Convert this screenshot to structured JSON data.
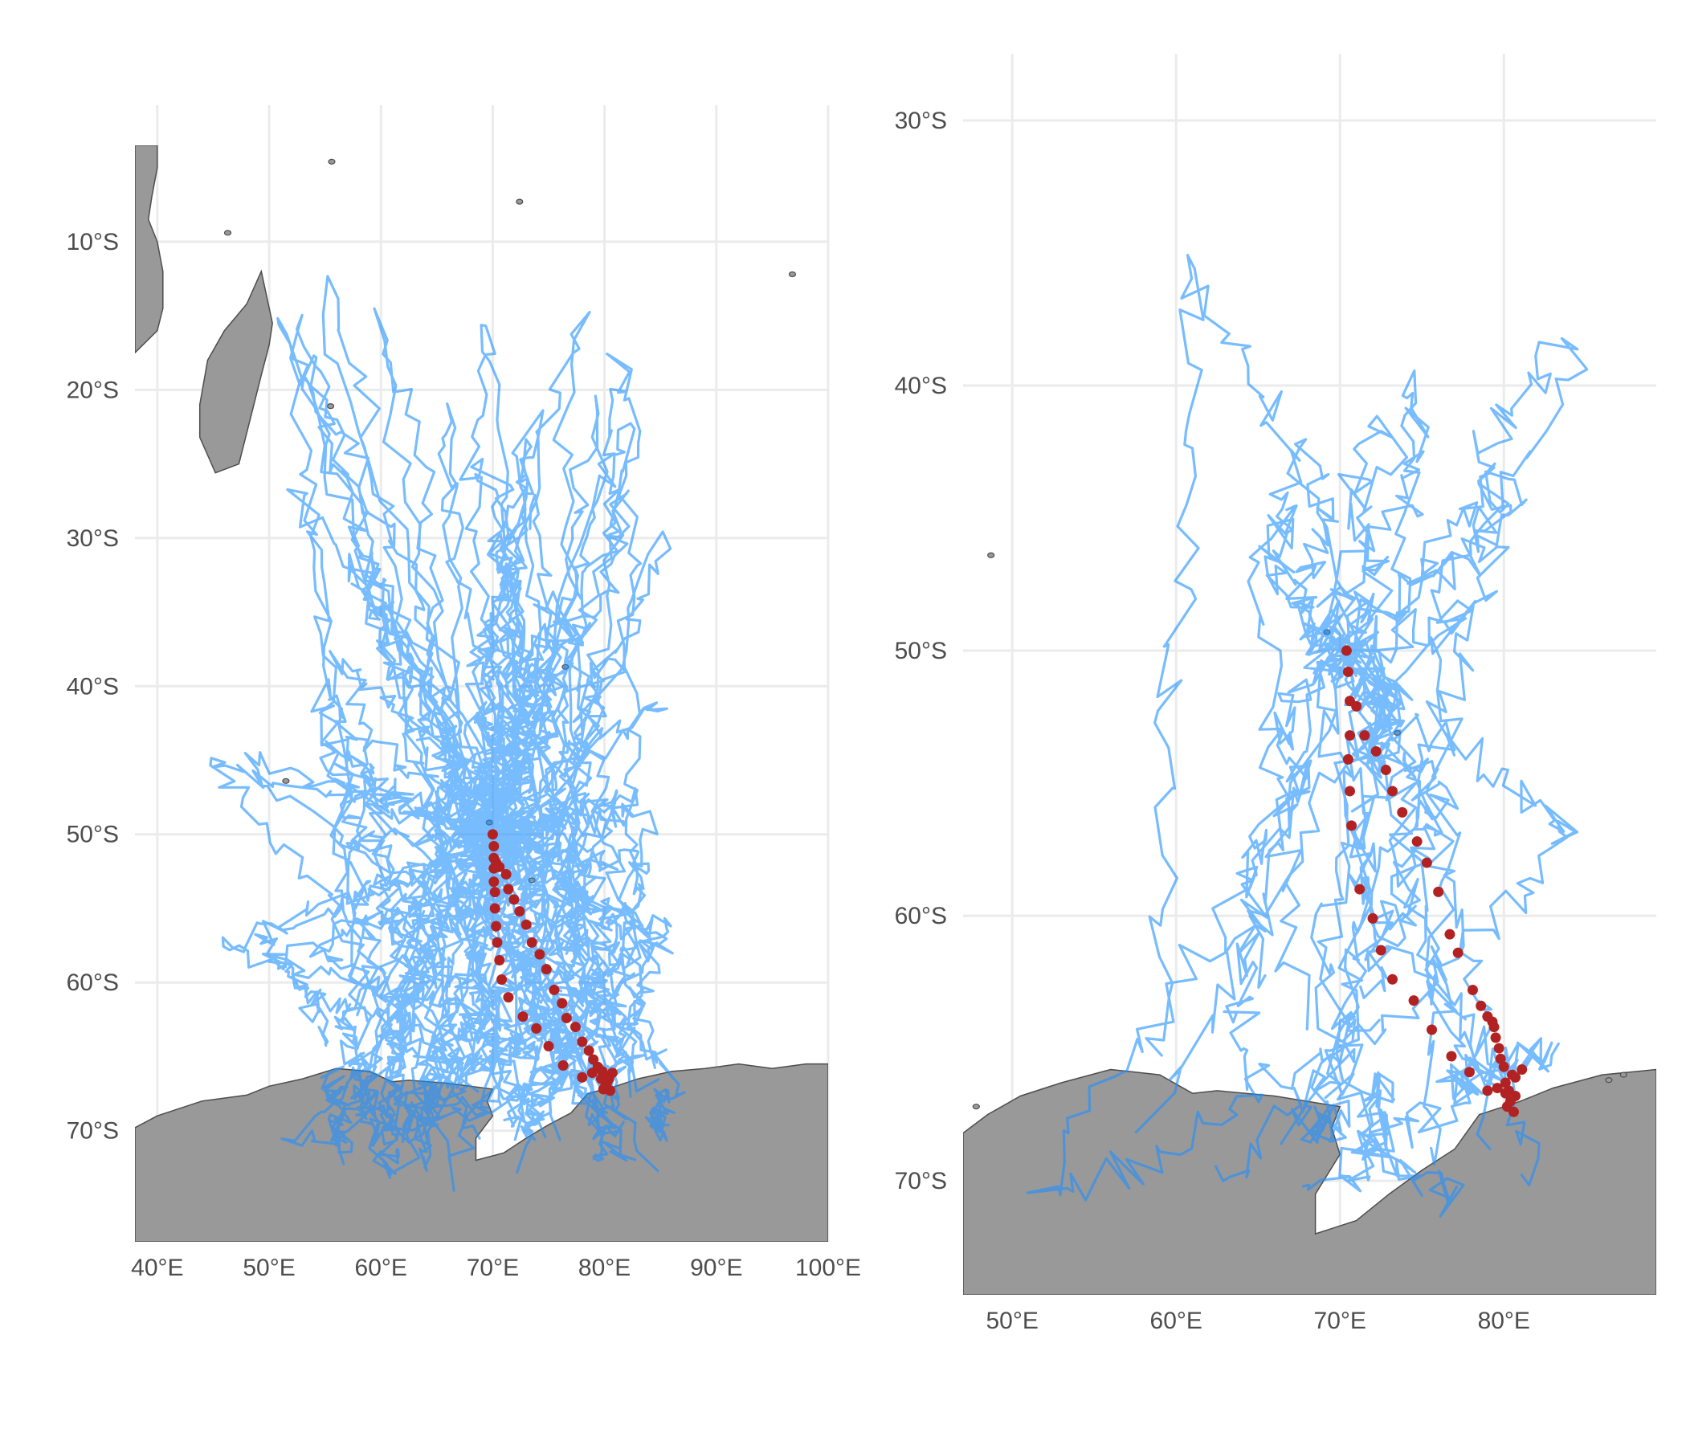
{
  "colors": {
    "tracks": "#1e90ff",
    "tracks_opacity": 0.6,
    "points": "#b22222",
    "land": "#999999",
    "grid": "#ebebeb"
  },
  "chart_data": [
    {
      "type": "map",
      "panel": "left",
      "grid": true,
      "xlim": [
        38,
        100
      ],
      "ylim": [
        -77.5,
        -3.5
      ],
      "x_ticks": [
        40,
        50,
        60,
        70,
        80,
        90,
        100
      ],
      "x_tick_labels": [
        "40°E",
        "50°E",
        "60°E",
        "70°E",
        "80°E",
        "90°E",
        "100°E"
      ],
      "y_ticks": [
        -10,
        -20,
        -30,
        -40,
        -50,
        -60,
        -70
      ],
      "y_tick_labels": [
        "10°S",
        "20°S",
        "30°S",
        "40°S",
        "50°S",
        "60°S",
        "70°S"
      ],
      "land": [
        {
          "name": "Africa",
          "coords": [
            [
              38,
              -3.5
            ],
            [
              40,
              -3.5
            ],
            [
              40,
              -5
            ],
            [
              39.5,
              -7
            ],
            [
              39.2,
              -8.5
            ],
            [
              40,
              -10
            ],
            [
              40.5,
              -12
            ],
            [
              40.5,
              -14.5
            ],
            [
              40,
              -16
            ],
            [
              38,
              -17.5
            ]
          ]
        },
        {
          "name": "Madagascar",
          "coords": [
            [
              49.3,
              -12
            ],
            [
              50.3,
              -15.5
            ],
            [
              50,
              -17
            ],
            [
              49.3,
              -19
            ],
            [
              48.3,
              -22
            ],
            [
              47.3,
              -25
            ],
            [
              45.2,
              -25.6
            ],
            [
              43.8,
              -23.2
            ],
            [
              43.8,
              -21
            ],
            [
              44.5,
              -18
            ],
            [
              46,
              -16
            ],
            [
              48,
              -14.2
            ]
          ]
        },
        {
          "name": "Antarctica",
          "coords": [
            [
              38,
              -69.8
            ],
            [
              40,
              -69
            ],
            [
              44,
              -68
            ],
            [
              48,
              -67.6
            ],
            [
              50,
              -67
            ],
            [
              53,
              -66.5
            ],
            [
              56,
              -65.8
            ],
            [
              59,
              -66
            ],
            [
              61,
              -66.7
            ],
            [
              62.5,
              -66.6
            ],
            [
              66,
              -66.8
            ],
            [
              70,
              -67.2
            ],
            [
              69.5,
              -68
            ],
            [
              70,
              -69
            ],
            [
              68.5,
              -70.5
            ],
            [
              68.5,
              -72
            ],
            [
              71,
              -71.5
            ],
            [
              73,
              -70.5
            ],
            [
              75,
              -69.6
            ],
            [
              77,
              -68.8
            ],
            [
              78.5,
              -67.5
            ],
            [
              81,
              -67
            ],
            [
              83,
              -66.5
            ],
            [
              86,
              -66
            ],
            [
              89,
              -65.8
            ],
            [
              92,
              -65.5
            ],
            [
              95,
              -65.8
            ],
            [
              98,
              -65.5
            ],
            [
              100,
              -65.5
            ],
            [
              100,
              -77.5
            ],
            [
              38,
              -77.5
            ]
          ]
        }
      ],
      "islands": [
        [
          -57,
          -20.3
        ],
        [
          [
            55.5,
            -21.1
          ]
        ],
        [
          [
            51.5,
            -46.4
          ]
        ],
        [
          [
            69.7,
            -49.2
          ]
        ],
        [
          [
            73.5,
            -53.1
          ]
        ],
        [
          [
            76.5,
            -38.7
          ]
        ],
        [
          [
            72.4,
            -7.3
          ]
        ],
        [
          [
            96.8,
            -12.2
          ]
        ],
        [
          [
            55.6,
            -4.6
          ]
        ],
        [
          [
            46.3,
            -9.4
          ]
        ]
      ],
      "series": [
        {
          "name": "",
          "role": "points",
          "points": [
            [
              70,
              -50
            ],
            [
              70.1,
              -50.8
            ],
            [
              70.3,
              -51.9
            ],
            [
              70.6,
              -52.2
            ],
            [
              71.2,
              -52.7
            ],
            [
              71.4,
              -53.7
            ],
            [
              71.9,
              -54.4
            ],
            [
              72.4,
              -55.2
            ],
            [
              73,
              -56.1
            ],
            [
              73.5,
              -57.3
            ],
            [
              74.2,
              -58.1
            ],
            [
              74.8,
              -59.1
            ],
            [
              75.5,
              -60.5
            ],
            [
              76.2,
              -61.4
            ],
            [
              76.6,
              -62.4
            ],
            [
              77.4,
              -63
            ],
            [
              78,
              -64
            ],
            [
              78.6,
              -64.6
            ],
            [
              79,
              -65.2
            ],
            [
              79.4,
              -65.7
            ],
            [
              79.8,
              -66
            ],
            [
              80.1,
              -66.3
            ],
            [
              80.4,
              -66.5
            ],
            [
              80.7,
              -66.1
            ],
            [
              80.2,
              -66.8
            ],
            [
              79.9,
              -67.2
            ],
            [
              80.5,
              -67.3
            ],
            [
              80.3,
              -66.6
            ],
            [
              80.1,
              -66.9
            ],
            [
              79.7,
              -66.5
            ],
            [
              78.9,
              -66.1
            ],
            [
              78,
              -66.4
            ],
            [
              76.3,
              -65.6
            ],
            [
              75,
              -64.3
            ],
            [
              73.9,
              -63.1
            ],
            [
              72.7,
              -62.3
            ],
            [
              71.4,
              -61
            ],
            [
              70.8,
              -59.8
            ],
            [
              70.6,
              -58.5
            ],
            [
              70.4,
              -57.3
            ],
            [
              70.3,
              -56.2
            ],
            [
              70.2,
              -55
            ],
            [
              70.2,
              -53.9
            ],
            [
              70.1,
              -53.2
            ],
            [
              70.1,
              -52.3
            ],
            [
              70.1,
              -51.6
            ]
          ]
        }
      ]
    },
    {
      "type": "map",
      "panel": "right",
      "grid": true,
      "xlim": [
        47,
        89.3
      ],
      "ylim": [
        -74.3,
        -29
      ],
      "x_ticks": [
        50,
        60,
        70,
        80
      ],
      "x_tick_labels": [
        "50°E",
        "60°E",
        "70°E",
        "80°E"
      ],
      "y_ticks": [
        -30,
        -40,
        -50,
        -60,
        -70
      ],
      "y_tick_labels": [
        "30°S",
        "40°S",
        "50°S",
        "60°S",
        "70°S"
      ],
      "land": [
        {
          "name": "Antarctica",
          "coords": [
            [
              47,
              -68.2
            ],
            [
              48.5,
              -67.5
            ],
            [
              50.5,
              -66.8
            ],
            [
              53,
              -66.3
            ],
            [
              56,
              -65.8
            ],
            [
              59,
              -66
            ],
            [
              61,
              -66.7
            ],
            [
              62.5,
              -66.6
            ],
            [
              66,
              -66.8
            ],
            [
              70,
              -67.2
            ],
            [
              69.5,
              -68
            ],
            [
              70,
              -69
            ],
            [
              68.5,
              -70.5
            ],
            [
              68.5,
              -72
            ],
            [
              71,
              -71.5
            ],
            [
              73,
              -70.5
            ],
            [
              75,
              -69.6
            ],
            [
              77,
              -68.8
            ],
            [
              78.5,
              -67.5
            ],
            [
              81,
              -67
            ],
            [
              83,
              -66.5
            ],
            [
              86,
              -66
            ],
            [
              89.3,
              -65.8
            ],
            [
              89.3,
              -74.3
            ],
            [
              47,
              -74.3
            ]
          ]
        }
      ],
      "islands": [
        [
          [
            48.7,
            -46.4
          ]
        ],
        [
          [
            69.2,
            -49.3
          ]
        ],
        [
          [
            73.5,
            -53.1
          ]
        ],
        [
          [
            47.8,
            -67.2
          ]
        ],
        [
          [
            86.4,
            -66.2
          ]
        ],
        [
          [
            87.3,
            -66
          ]
        ]
      ],
      "series": [
        {
          "name": "",
          "role": "points",
          "points": [
            [
              70.4,
              -50
            ],
            [
              70.5,
              -50.8
            ],
            [
              70.6,
              -51.9
            ],
            [
              71,
              -52.1
            ],
            [
              70.6,
              -53.2
            ],
            [
              71.5,
              -53.2
            ],
            [
              72.2,
              -53.8
            ],
            [
              72.8,
              -54.5
            ],
            [
              70.5,
              -54.1
            ],
            [
              73.2,
              -55.3
            ],
            [
              70.6,
              -55.3
            ],
            [
              73.8,
              -56.1
            ],
            [
              70.7,
              -56.6
            ],
            [
              74.7,
              -57.2
            ],
            [
              75.3,
              -58
            ],
            [
              71.2,
              -59
            ],
            [
              76,
              -59.1
            ],
            [
              72,
              -60.1
            ],
            [
              76.7,
              -60.7
            ],
            [
              77.2,
              -61.4
            ],
            [
              72.5,
              -61.3
            ],
            [
              78.1,
              -62.8
            ],
            [
              73.2,
              -62.4
            ],
            [
              78.6,
              -63.4
            ],
            [
              79,
              -63.8
            ],
            [
              79.3,
              -64
            ],
            [
              79.4,
              -64.2
            ],
            [
              79.5,
              -64.6
            ],
            [
              74.5,
              -63.2
            ],
            [
              79.7,
              -65
            ],
            [
              79.8,
              -65.4
            ],
            [
              75.6,
              -64.3
            ],
            [
              80,
              -65.7
            ],
            [
              80.5,
              -66
            ],
            [
              81.1,
              -65.8
            ],
            [
              80.7,
              -66.1
            ],
            [
              80.1,
              -66.3
            ],
            [
              79.6,
              -66.5
            ],
            [
              79,
              -66.6
            ],
            [
              80.3,
              -66.6
            ],
            [
              80.7,
              -66.8
            ],
            [
              80.4,
              -67
            ],
            [
              80.1,
              -66.7
            ],
            [
              80.6,
              -67.4
            ],
            [
              80.2,
              -67.2
            ],
            [
              76.8,
              -65.3
            ],
            [
              77.9,
              -65.9
            ]
          ]
        }
      ]
    }
  ]
}
